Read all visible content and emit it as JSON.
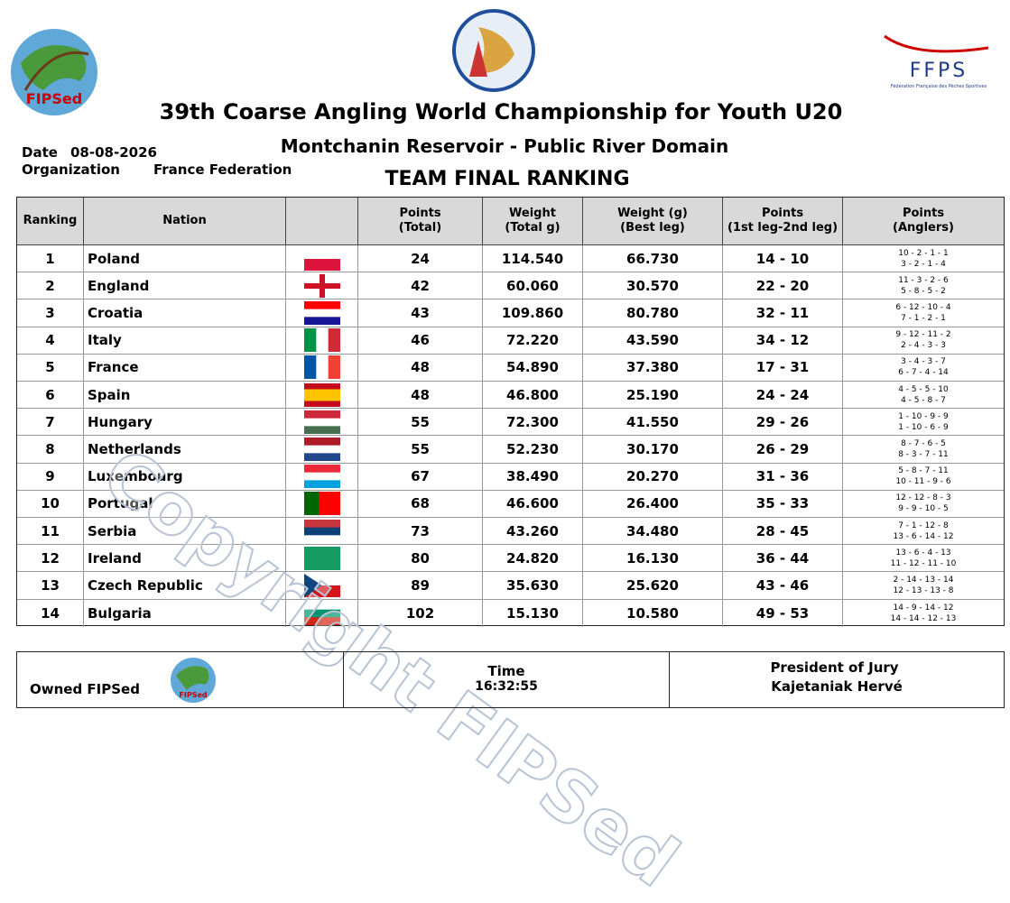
{
  "header": {
    "title": "39th Coarse Angling World Championship for Youth U20",
    "venue": "Montchanin Reservoir  - Public River Domain",
    "ranking_title": "TEAM FINAL RANKING",
    "date_label": "Date",
    "date": "08-08-2026",
    "organization_label": "Organization",
    "organization": "France Federation",
    "left_logo": "FIPSed",
    "right_logo": "FFPS",
    "right_logo_sub": "Fédération Française des Pêches Sportives"
  },
  "table": {
    "columns": [
      [
        "Ranking"
      ],
      [
        "Nation"
      ],
      [
        "Points",
        "(Total)"
      ],
      [
        "Weight",
        "(Total g)"
      ],
      [
        "Weight (g)",
        "(Best leg)"
      ],
      [
        "Points",
        "(1st leg-2nd leg)"
      ],
      [
        "Points",
        "(Anglers)"
      ]
    ],
    "rows": [
      [
        1,
        "Poland",
        24,
        "114.540",
        "66.730",
        "14 - 10",
        [
          "10 - 2 - 1 - 1",
          "3 - 2 - 1 - 4"
        ]
      ],
      [
        2,
        "England",
        42,
        "60.060",
        "30.570",
        "22 - 20",
        [
          "11 - 3 - 2 - 6",
          "5 - 8 - 5 - 2"
        ]
      ],
      [
        3,
        "Croatia",
        43,
        "109.860",
        "80.780",
        "32 - 11",
        [
          "6 - 12 - 10 - 4",
          "7 - 1 - 2 - 1"
        ]
      ],
      [
        4,
        "Italy",
        46,
        "72.220",
        "43.590",
        "34 - 12",
        [
          "9 - 12 - 11 - 2",
          "2 - 4 - 3 - 3"
        ]
      ],
      [
        5,
        "France",
        48,
        "54.890",
        "37.380",
        "17 - 31",
        [
          "3 - 4 - 3 - 7",
          "6 - 7 - 4 - 14"
        ]
      ],
      [
        6,
        "Spain",
        48,
        "46.800",
        "25.190",
        "24 - 24",
        [
          "4 - 5 - 5 - 10",
          "4 - 5 - 8 - 7"
        ]
      ],
      [
        7,
        "Hungary",
        55,
        "72.300",
        "41.550",
        "29 - 26",
        [
          "1 - 10 - 9 - 9",
          "1 - 10 - 6 - 9"
        ]
      ],
      [
        8,
        "Netherlands",
        55,
        "52.230",
        "30.170",
        "26 - 29",
        [
          "8 - 7 - 6 - 5",
          "8 - 3 - 7 - 11"
        ]
      ],
      [
        9,
        "Luxembourg",
        67,
        "38.490",
        "20.270",
        "31 - 36",
        [
          "5 - 8 - 7 - 11",
          "10 - 11 - 9 - 6"
        ]
      ],
      [
        10,
        "Portugal",
        68,
        "46.600",
        "26.400",
        "35 - 33",
        [
          "12 - 12 - 8 - 3",
          "9 - 9 - 10 - 5"
        ]
      ],
      [
        11,
        "Serbia",
        73,
        "43.260",
        "34.480",
        "28 - 45",
        [
          "7 - 1 - 12 - 8",
          "13 - 6 - 14 - 12"
        ]
      ],
      [
        12,
        "Ireland",
        80,
        "24.820",
        "16.130",
        "36 - 44",
        [
          "13 - 6 - 4 - 13",
          "11 - 12 - 11 - 10"
        ]
      ],
      [
        13,
        "Czech Republic",
        89,
        "35.630",
        "25.620",
        "43 - 46",
        [
          "2 - 14 - 13 - 14",
          "12 - 13 - 13 - 8"
        ]
      ],
      [
        14,
        "Bulgaria",
        102,
        "15.130",
        "10.580",
        "49 - 53",
        [
          "14 - 9 - 14 - 12",
          "14 - 14 - 12 - 13"
        ]
      ]
    ]
  },
  "watermark": "Copyright FIPSed",
  "footer": {
    "owner": "Owned FIPSed",
    "owner_logo": "FIPSed",
    "time_label": "Time",
    "time": "16:32:55",
    "jury_label": "President of Jury",
    "jury": "Kajetaniak Hervé"
  }
}
